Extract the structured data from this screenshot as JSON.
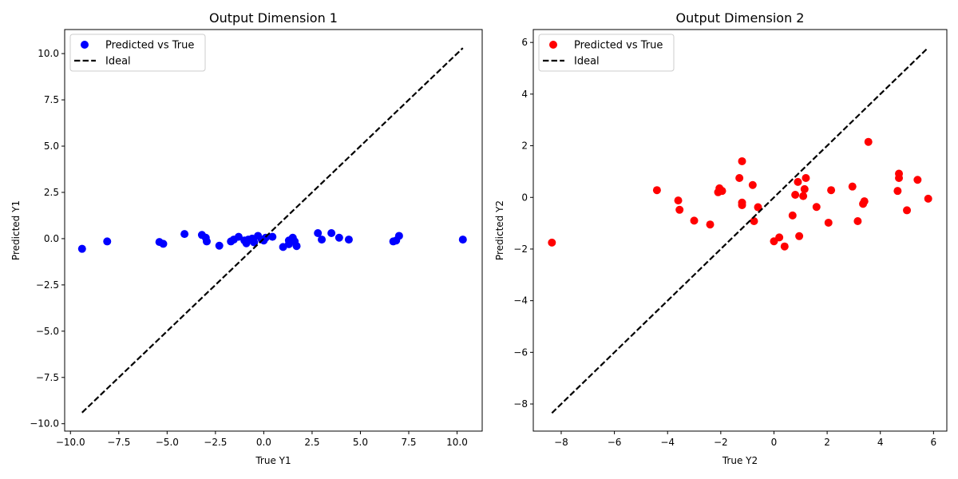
{
  "chart_data": [
    {
      "type": "scatter",
      "title": "Output Dimension 1",
      "xlabel": "True Y1",
      "ylabel": "Predicted Y1",
      "xlim": [
        -10.3,
        11.3
      ],
      "ylim": [
        -10.4,
        11.3
      ],
      "xticks": [
        -10.0,
        -7.5,
        -5.0,
        -2.5,
        0.0,
        2.5,
        5.0,
        7.5,
        10.0
      ],
      "xtick_labels": [
        "−10.0",
        "−7.5",
        "−5.0",
        "−2.5",
        "0.0",
        "2.5",
        "5.0",
        "7.5",
        "10.0"
      ],
      "yticks": [
        -10.0,
        -7.5,
        -5.0,
        -2.5,
        0.0,
        2.5,
        5.0,
        7.5,
        10.0
      ],
      "ytick_labels": [
        "−10.0",
        "−7.5",
        "−5.0",
        "−2.5",
        "0.0",
        "2.5",
        "5.0",
        "7.5",
        "10.0"
      ],
      "grid": false,
      "legend_position": "top-left",
      "series": [
        {
          "name": "Predicted vs True",
          "color": "#0000ff",
          "kind": "scatter",
          "points": [
            [
              -9.4,
              -0.55
            ],
            [
              -8.1,
              -0.15
            ],
            [
              -5.4,
              -0.18
            ],
            [
              -5.2,
              -0.28
            ],
            [
              -4.1,
              0.25
            ],
            [
              -3.2,
              0.2
            ],
            [
              -3.0,
              0.05
            ],
            [
              -2.95,
              -0.15
            ],
            [
              -2.3,
              -0.38
            ],
            [
              -1.7,
              -0.15
            ],
            [
              -1.55,
              -0.05
            ],
            [
              -1.3,
              0.1
            ],
            [
              -1.0,
              -0.1
            ],
            [
              -0.9,
              -0.25
            ],
            [
              -0.8,
              -0.05
            ],
            [
              -0.6,
              0.0
            ],
            [
              -0.5,
              -0.2
            ],
            [
              -0.3,
              0.15
            ],
            [
              -0.1,
              -0.05
            ],
            [
              0.0,
              -0.1
            ],
            [
              0.1,
              0.05
            ],
            [
              0.45,
              0.1
            ],
            [
              1.0,
              -0.45
            ],
            [
              1.3,
              -0.3
            ],
            [
              1.3,
              -0.1
            ],
            [
              1.5,
              0.05
            ],
            [
              1.6,
              -0.15
            ],
            [
              1.7,
              -0.4
            ],
            [
              2.8,
              0.3
            ],
            [
              3.0,
              -0.05
            ],
            [
              3.5,
              0.3
            ],
            [
              3.9,
              0.05
            ],
            [
              4.4,
              -0.05
            ],
            [
              6.7,
              -0.15
            ],
            [
              6.85,
              -0.1
            ],
            [
              7.0,
              0.15
            ],
            [
              10.3,
              -0.05
            ]
          ]
        },
        {
          "name": "Ideal",
          "color": "#000000",
          "kind": "line",
          "dashed": true,
          "points": [
            [
              -9.4,
              -9.4
            ],
            [
              10.3,
              10.3
            ]
          ]
        }
      ]
    },
    {
      "type": "scatter",
      "title": "Output Dimension 2",
      "xlabel": "True Y2",
      "ylabel": "Predicted Y2",
      "xlim": [
        -9.05,
        6.5
      ],
      "ylim": [
        -9.05,
        6.5
      ],
      "xticks": [
        -8,
        -6,
        -4,
        -2,
        0,
        2,
        4,
        6
      ],
      "xtick_labels": [
        "−8",
        "−6",
        "−4",
        "−2",
        "0",
        "2",
        "4",
        "6"
      ],
      "yticks": [
        -8,
        -6,
        -4,
        -2,
        0,
        2,
        4,
        6
      ],
      "ytick_labels": [
        "−8",
        "−6",
        "−4",
        "−2",
        "0",
        "2",
        "4",
        "6"
      ],
      "grid": false,
      "legend_position": "top-left",
      "series": [
        {
          "name": "Predicted vs True",
          "color": "#ff0000",
          "kind": "scatter",
          "points": [
            [
              -8.35,
              -1.75
            ],
            [
              -4.4,
              0.28
            ],
            [
              -3.6,
              -0.12
            ],
            [
              -3.55,
              -0.48
            ],
            [
              -3.0,
              -0.9
            ],
            [
              -2.4,
              -1.05
            ],
            [
              -2.1,
              0.2
            ],
            [
              -2.05,
              0.35
            ],
            [
              -1.95,
              0.25
            ],
            [
              -1.3,
              0.75
            ],
            [
              -1.2,
              1.4
            ],
            [
              -1.2,
              -0.2
            ],
            [
              -1.2,
              -0.3
            ],
            [
              -0.8,
              0.48
            ],
            [
              -0.75,
              -0.92
            ],
            [
              -0.6,
              -0.38
            ],
            [
              0.0,
              -1.7
            ],
            [
              0.2,
              -1.55
            ],
            [
              0.4,
              -1.9
            ],
            [
              0.7,
              -0.7
            ],
            [
              0.8,
              0.1
            ],
            [
              0.9,
              0.6
            ],
            [
              0.95,
              -1.5
            ],
            [
              1.1,
              0.05
            ],
            [
              1.15,
              0.32
            ],
            [
              1.2,
              0.75
            ],
            [
              1.6,
              -0.37
            ],
            [
              2.05,
              -0.98
            ],
            [
              2.15,
              0.28
            ],
            [
              2.95,
              0.42
            ],
            [
              3.15,
              -0.92
            ],
            [
              3.35,
              -0.25
            ],
            [
              3.4,
              -0.15
            ],
            [
              3.55,
              2.15
            ],
            [
              4.65,
              0.25
            ],
            [
              4.7,
              0.75
            ],
            [
              4.7,
              0.92
            ],
            [
              5.0,
              -0.5
            ],
            [
              5.4,
              0.68
            ],
            [
              5.8,
              -0.05
            ]
          ]
        },
        {
          "name": "Ideal",
          "color": "#000000",
          "kind": "line",
          "dashed": true,
          "points": [
            [
              -8.35,
              -8.35
            ],
            [
              5.8,
              5.8
            ]
          ]
        }
      ]
    }
  ]
}
